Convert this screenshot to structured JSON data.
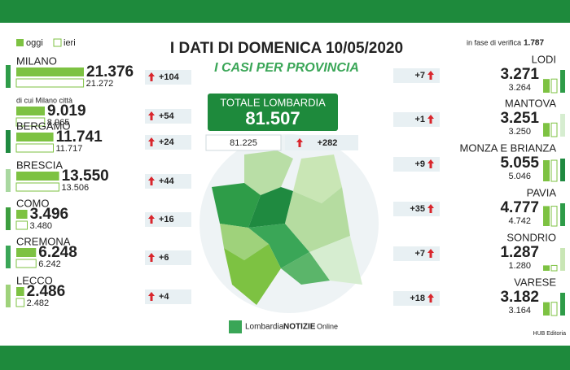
{
  "header": {
    "title": "I DATI DI DOMENICA 10/05/2020",
    "subtitle": "I CASI PER PROVINCIA"
  },
  "legend": {
    "today": "oggi",
    "yesterday": "ieri"
  },
  "verification": {
    "label": "in fase di verifica",
    "value": {
      "value": 1787,
      "label": "1.787"
    }
  },
  "total": {
    "label": "TOTALE LOMBARDIA",
    "today": {
      "value": 81507,
      "label": "81.507"
    },
    "yesterday": {
      "value": 81225,
      "label": "81.225"
    },
    "delta": {
      "value": 282,
      "label": "+282"
    }
  },
  "left": [
    {
      "name": "MILANO",
      "color": "#2e9c48",
      "today": {
        "value": 21376,
        "label": "21.376"
      },
      "yesterday": {
        "value": 21272,
        "label": "21.272"
      },
      "delta": {
        "value": 104,
        "label": "+104"
      }
    },
    {
      "name": "di cui Milano città",
      "color": "#ffffff",
      "today": {
        "value": 9019,
        "label": "9.019"
      },
      "yesterday": {
        "value": 8965,
        "label": "8.965"
      },
      "delta": {
        "value": 54,
        "label": "+54"
      }
    },
    {
      "name": "BERGAMO",
      "color": "#1f8a40",
      "today": {
        "value": 11741,
        "label": "11.741"
      },
      "yesterday": {
        "value": 11717,
        "label": "11.717"
      },
      "delta": {
        "value": 24,
        "label": "+24"
      }
    },
    {
      "name": "BRESCIA",
      "color": "#a9d8a0",
      "today": {
        "value": 13550,
        "label": "13.550"
      },
      "yesterday": {
        "value": 13506,
        "label": "13.506"
      },
      "delta": {
        "value": 44,
        "label": "+44"
      }
    },
    {
      "name": "COMO",
      "color": "#3c9e3e",
      "today": {
        "value": 3496,
        "label": "3.496"
      },
      "yesterday": {
        "value": 3480,
        "label": "3.480"
      },
      "delta": {
        "value": 16,
        "label": "+16"
      }
    },
    {
      "name": "CREMONA",
      "color": "#3aa657",
      "today": {
        "value": 6248,
        "label": "6.248"
      },
      "yesterday": {
        "value": 6242,
        "label": "6.242"
      },
      "delta": {
        "value": 6,
        "label": "+6"
      }
    },
    {
      "name": "LECCO",
      "color": "#9fd27b",
      "today": {
        "value": 2486,
        "label": "2.486"
      },
      "yesterday": {
        "value": 2482,
        "label": "2.482"
      },
      "delta": {
        "value": 4,
        "label": "+4"
      }
    }
  ],
  "right": [
    {
      "name": "LODI",
      "color": "#2e9c48",
      "today": {
        "value": 3271,
        "label": "3.271"
      },
      "yesterday": {
        "value": 3264,
        "label": "3.264"
      },
      "delta": {
        "value": 7,
        "label": "+7"
      }
    },
    {
      "name": "MANTOVA",
      "color": "#d6edd0",
      "today": {
        "value": 3251,
        "label": "3.251"
      },
      "yesterday": {
        "value": 3250,
        "label": "3.250"
      },
      "delta": {
        "value": 1,
        "label": "+1"
      }
    },
    {
      "name": "MONZA E BRIANZA",
      "color": "#1f8a40",
      "today": {
        "value": 5055,
        "label": "5.055"
      },
      "yesterday": {
        "value": 5046,
        "label": "5.046"
      },
      "delta": {
        "value": 9,
        "label": "+9"
      }
    },
    {
      "name": "PAVIA",
      "color": "#2e9c48",
      "today": {
        "value": 4777,
        "label": "4.777"
      },
      "yesterday": {
        "value": 4742,
        "label": "4.742"
      },
      "delta": {
        "value": 35,
        "label": "+35"
      }
    },
    {
      "name": "SONDRIO",
      "color": "#c9e6b5",
      "today": {
        "value": 1287,
        "label": "1.287"
      },
      "yesterday": {
        "value": 1280,
        "label": "1.280"
      },
      "delta": {
        "value": 7,
        "label": "+7"
      }
    },
    {
      "name": "VARESE",
      "color": "#2e9c48",
      "today": {
        "value": 3182,
        "label": "3.182"
      },
      "yesterday": {
        "value": 3164,
        "label": "3.164"
      },
      "delta": {
        "value": 18,
        "label": "+18"
      }
    }
  ],
  "footer": {
    "brand": "Lombardia",
    "brand_bold": "NOTIZIE",
    "brand_suffix": "Online",
    "credit": "HUB Editoria"
  }
}
